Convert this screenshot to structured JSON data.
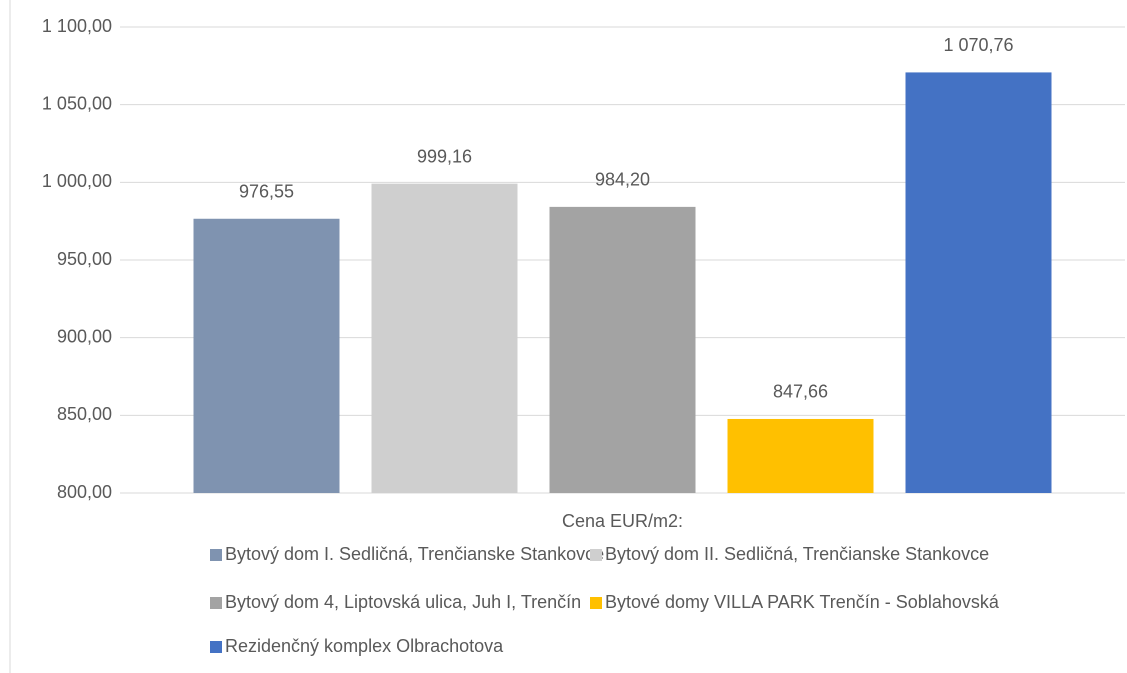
{
  "chart_data": {
    "type": "bar",
    "categories": [
      "Cena EUR/m2:"
    ],
    "ylim": [
      800,
      1100
    ],
    "yticks": [
      {
        "value": 800,
        "label": "800,00"
      },
      {
        "value": 850,
        "label": "850,00"
      },
      {
        "value": 900,
        "label": "900,00"
      },
      {
        "value": 950,
        "label": "950,00"
      },
      {
        "value": 1000,
        "label": "1 000,00"
      },
      {
        "value": 1050,
        "label": "1 050,00"
      },
      {
        "value": 1100,
        "label": "1 100,00"
      }
    ],
    "grid": true,
    "legend": "bottom",
    "series": [
      {
        "name": "Bytový dom I. Sedličná, Trenčianske Stankovce",
        "color": "#7f93b0",
        "values": [
          976.55
        ],
        "value_labels": [
          "976,55"
        ]
      },
      {
        "name": "Bytový dom II. Sedličná, Trenčianske Stankovce",
        "color": "#cfcfcf",
        "values": [
          999.16
        ],
        "value_labels": [
          "999,16"
        ]
      },
      {
        "name": "Bytový dom 4, Liptovská ulica, Juh I, Trenčín",
        "color": "#a3a3a3",
        "values": [
          984.2
        ],
        "value_labels": [
          "984,20"
        ]
      },
      {
        "name": "Bytové domy VILLA PARK Trenčín - Soblahovská",
        "color": "#ffc000",
        "values": [
          847.66
        ],
        "value_labels": [
          "847,66"
        ]
      },
      {
        "name": "Rezidenčný komplex Olbrachotova",
        "color": "#4472c4",
        "values": [
          1070.76
        ],
        "value_labels": [
          "1 070,76"
        ]
      }
    ]
  }
}
